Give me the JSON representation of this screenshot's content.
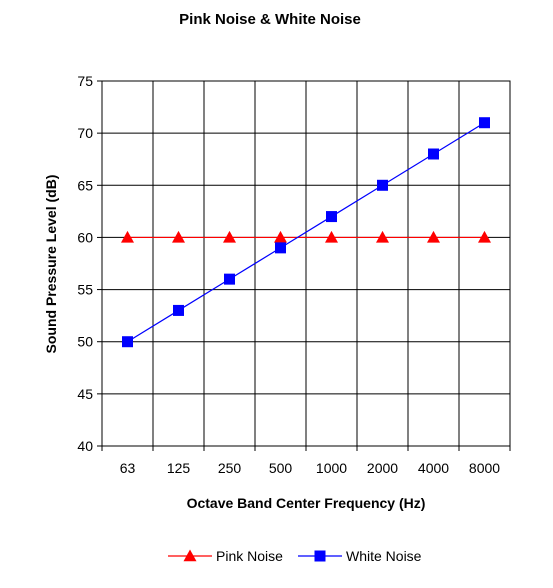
{
  "chart_data": {
    "type": "line",
    "title": "Pink Noise & White Noise",
    "xlabel": "Octave Band Center Frequency (Hz)",
    "ylabel": "Sound Pressure Level (dB)",
    "categories": [
      "63",
      "125",
      "250",
      "500",
      "1000",
      "2000",
      "4000",
      "8000"
    ],
    "ylim": [
      40,
      75
    ],
    "yticks": [
      40,
      45,
      50,
      55,
      60,
      65,
      70,
      75
    ],
    "grid": true,
    "legend_position": "bottom",
    "series": [
      {
        "name": "Pink Noise",
        "color": "#ff0000",
        "marker": "triangle",
        "values": [
          60,
          60,
          60,
          60,
          60,
          60,
          60,
          60
        ]
      },
      {
        "name": "White Noise",
        "color": "#0000ff",
        "marker": "square",
        "values": [
          50,
          53,
          56,
          59,
          62,
          65,
          68,
          71
        ]
      }
    ]
  }
}
